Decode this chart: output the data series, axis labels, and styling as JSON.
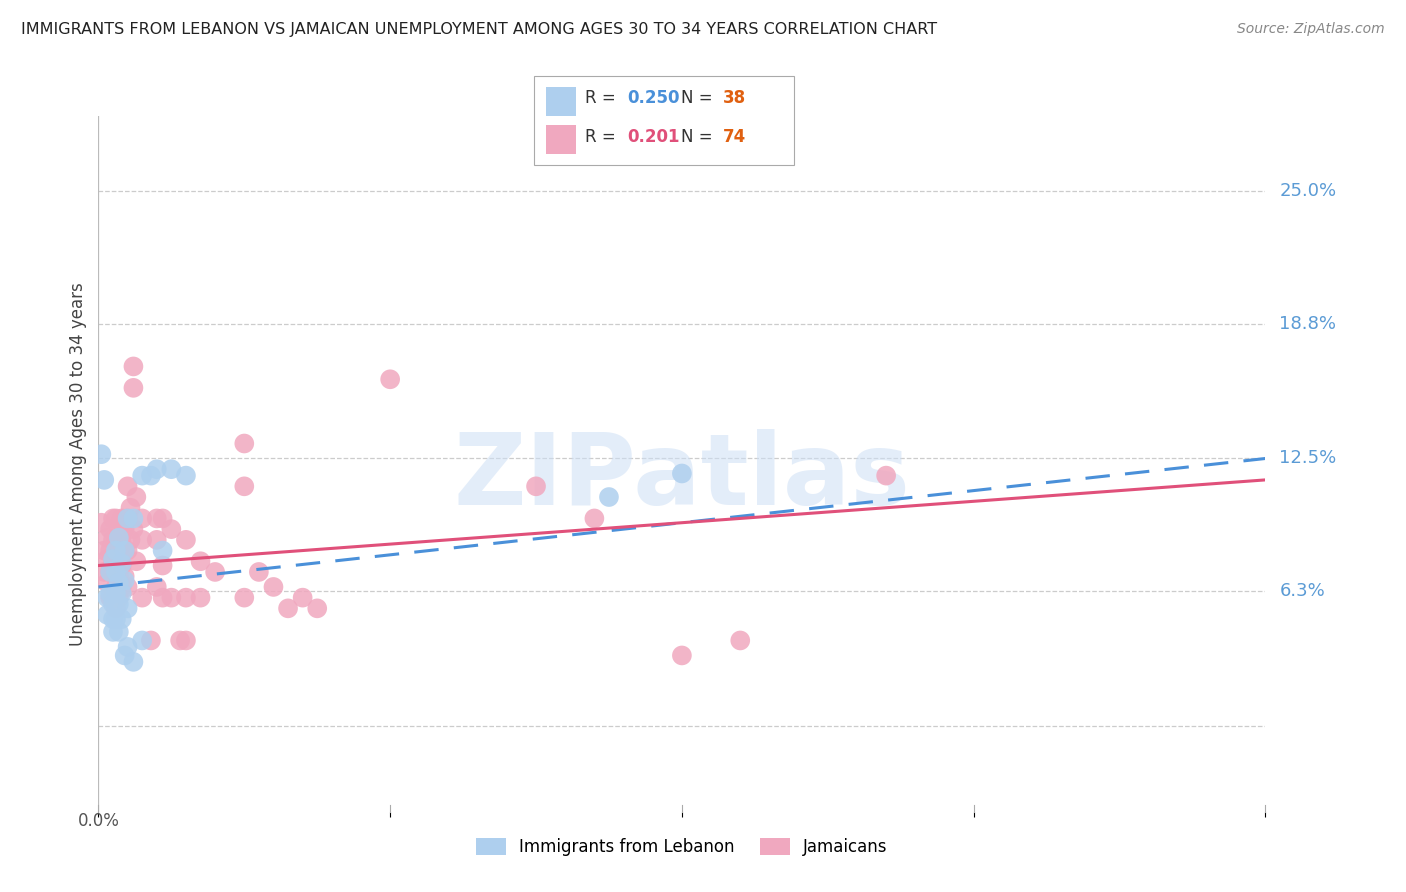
{
  "title": "IMMIGRANTS FROM LEBANON VS JAMAICAN UNEMPLOYMENT AMONG AGES 30 TO 34 YEARS CORRELATION CHART",
  "source": "Source: ZipAtlas.com",
  "ylabel": "Unemployment Among Ages 30 to 34 years",
  "xlim": [
    0.0,
    0.4
  ],
  "ylim": [
    -0.04,
    0.285
  ],
  "yticks": [
    0.0,
    0.063,
    0.125,
    0.188,
    0.25
  ],
  "ytick_labels": [
    "",
    "6.3%",
    "12.5%",
    "18.8%",
    "25.0%"
  ],
  "legend_r_blue": "0.250",
  "legend_n_blue": "38",
  "legend_r_pink": "0.201",
  "legend_n_pink": "74",
  "legend_label_blue": "Immigrants from Lebanon",
  "legend_label_pink": "Jamaicans",
  "watermark": "ZIPatlas",
  "blue_color": "#aecfee",
  "pink_color": "#f0a8bf",
  "blue_line_color": "#4a90d9",
  "pink_line_color": "#e0507a",
  "right_label_color": "#5b9bd5",
  "title_color": "#222222",
  "source_color": "#888888",
  "grid_color": "#cccccc",
  "blue_scatter": [
    [
      0.001,
      0.127
    ],
    [
      0.002,
      0.115
    ],
    [
      0.003,
      0.06
    ],
    [
      0.003,
      0.052
    ],
    [
      0.004,
      0.072
    ],
    [
      0.004,
      0.062
    ],
    [
      0.005,
      0.078
    ],
    [
      0.005,
      0.057
    ],
    [
      0.005,
      0.05
    ],
    [
      0.005,
      0.044
    ],
    [
      0.006,
      0.082
    ],
    [
      0.006,
      0.072
    ],
    [
      0.006,
      0.062
    ],
    [
      0.006,
      0.05
    ],
    [
      0.007,
      0.088
    ],
    [
      0.007,
      0.067
    ],
    [
      0.007,
      0.057
    ],
    [
      0.007,
      0.044
    ],
    [
      0.008,
      0.076
    ],
    [
      0.008,
      0.062
    ],
    [
      0.008,
      0.05
    ],
    [
      0.009,
      0.082
    ],
    [
      0.009,
      0.068
    ],
    [
      0.009,
      0.033
    ],
    [
      0.01,
      0.097
    ],
    [
      0.01,
      0.055
    ],
    [
      0.01,
      0.037
    ],
    [
      0.012,
      0.097
    ],
    [
      0.012,
      0.03
    ],
    [
      0.015,
      0.117
    ],
    [
      0.015,
      0.04
    ],
    [
      0.018,
      0.117
    ],
    [
      0.02,
      0.12
    ],
    [
      0.022,
      0.082
    ],
    [
      0.025,
      0.12
    ],
    [
      0.03,
      0.117
    ],
    [
      0.175,
      0.107
    ],
    [
      0.2,
      0.118
    ]
  ],
  "pink_scatter": [
    [
      0.001,
      0.095
    ],
    [
      0.002,
      0.082
    ],
    [
      0.002,
      0.072
    ],
    [
      0.003,
      0.088
    ],
    [
      0.003,
      0.078
    ],
    [
      0.003,
      0.067
    ],
    [
      0.004,
      0.092
    ],
    [
      0.004,
      0.082
    ],
    [
      0.004,
      0.072
    ],
    [
      0.004,
      0.06
    ],
    [
      0.005,
      0.097
    ],
    [
      0.005,
      0.087
    ],
    [
      0.005,
      0.077
    ],
    [
      0.005,
      0.06
    ],
    [
      0.006,
      0.097
    ],
    [
      0.006,
      0.087
    ],
    [
      0.006,
      0.077
    ],
    [
      0.006,
      0.065
    ],
    [
      0.006,
      0.055
    ],
    [
      0.007,
      0.092
    ],
    [
      0.007,
      0.082
    ],
    [
      0.007,
      0.07
    ],
    [
      0.007,
      0.06
    ],
    [
      0.008,
      0.097
    ],
    [
      0.008,
      0.087
    ],
    [
      0.008,
      0.075
    ],
    [
      0.008,
      0.065
    ],
    [
      0.009,
      0.092
    ],
    [
      0.009,
      0.082
    ],
    [
      0.009,
      0.07
    ],
    [
      0.01,
      0.112
    ],
    [
      0.01,
      0.097
    ],
    [
      0.01,
      0.082
    ],
    [
      0.01,
      0.065
    ],
    [
      0.011,
      0.102
    ],
    [
      0.011,
      0.087
    ],
    [
      0.012,
      0.168
    ],
    [
      0.012,
      0.158
    ],
    [
      0.012,
      0.092
    ],
    [
      0.013,
      0.107
    ],
    [
      0.013,
      0.077
    ],
    [
      0.015,
      0.097
    ],
    [
      0.015,
      0.087
    ],
    [
      0.015,
      0.06
    ],
    [
      0.018,
      0.04
    ],
    [
      0.02,
      0.097
    ],
    [
      0.02,
      0.087
    ],
    [
      0.02,
      0.065
    ],
    [
      0.022,
      0.097
    ],
    [
      0.022,
      0.075
    ],
    [
      0.022,
      0.06
    ],
    [
      0.025,
      0.092
    ],
    [
      0.025,
      0.06
    ],
    [
      0.028,
      0.04
    ],
    [
      0.03,
      0.087
    ],
    [
      0.03,
      0.06
    ],
    [
      0.03,
      0.04
    ],
    [
      0.035,
      0.077
    ],
    [
      0.035,
      0.06
    ],
    [
      0.04,
      0.072
    ],
    [
      0.05,
      0.132
    ],
    [
      0.05,
      0.112
    ],
    [
      0.05,
      0.06
    ],
    [
      0.055,
      0.072
    ],
    [
      0.06,
      0.065
    ],
    [
      0.065,
      0.055
    ],
    [
      0.07,
      0.06
    ],
    [
      0.075,
      0.055
    ],
    [
      0.1,
      0.162
    ],
    [
      0.15,
      0.112
    ],
    [
      0.17,
      0.097
    ],
    [
      0.2,
      0.033
    ],
    [
      0.22,
      0.04
    ],
    [
      0.27,
      0.117
    ]
  ],
  "blue_trend": [
    0.0,
    0.065,
    0.4,
    0.125
  ],
  "pink_trend": [
    0.0,
    0.075,
    0.4,
    0.115
  ]
}
